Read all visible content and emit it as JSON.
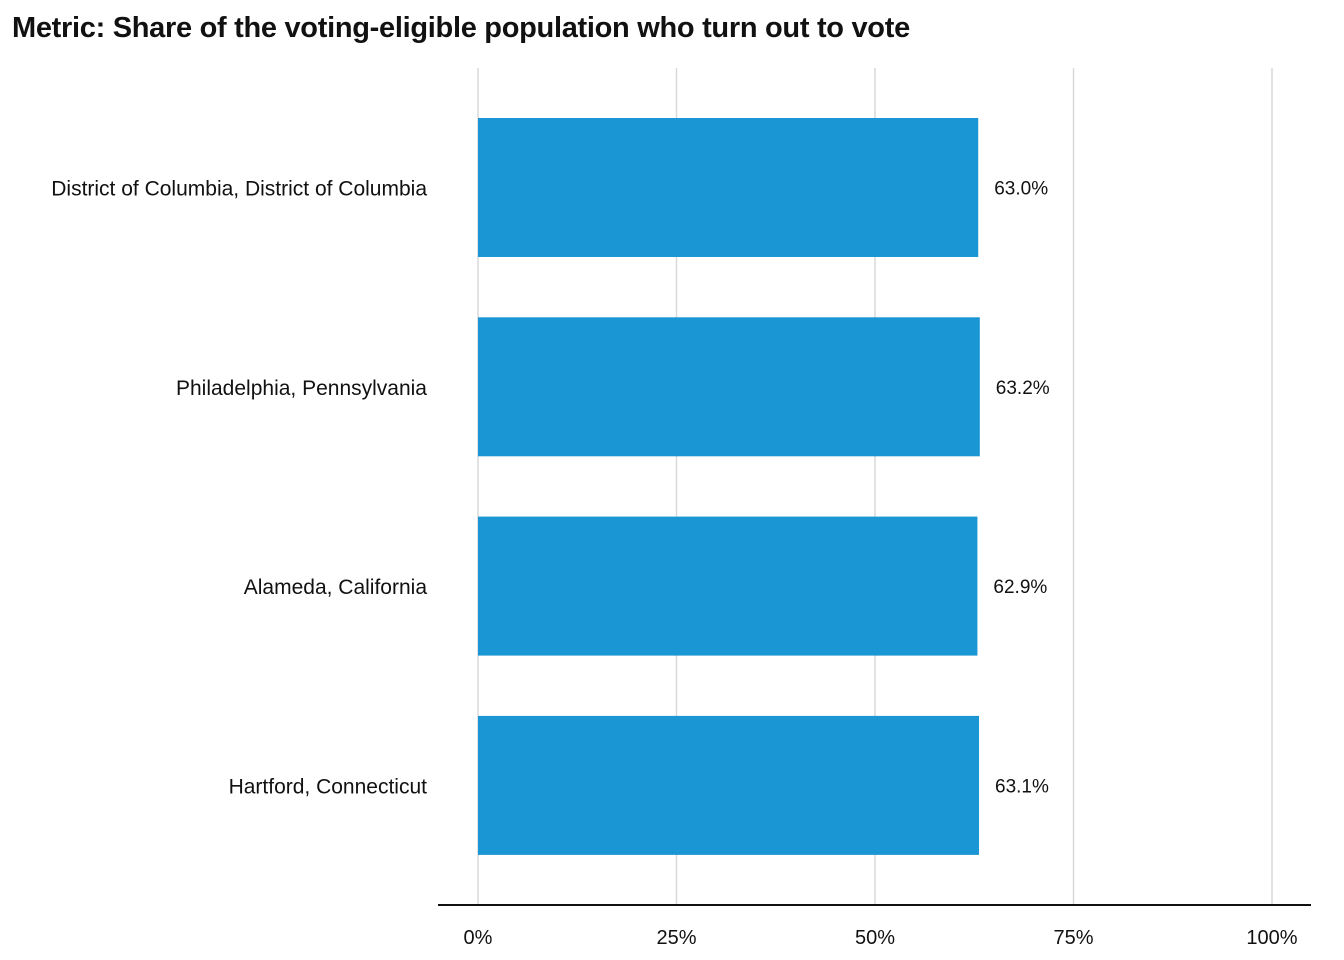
{
  "chart_data": {
    "type": "bar",
    "orientation": "horizontal",
    "title": "Metric: Share of the voting-eligible population who turn out to vote",
    "categories": [
      "District of Columbia, District of Columbia",
      "Philadelphia, Pennsylvania",
      "Alameda, California",
      "Hartford, Connecticut"
    ],
    "values": [
      63.0,
      63.2,
      62.9,
      63.1
    ],
    "value_labels": [
      "63.0%",
      "63.2%",
      "62.9%",
      "63.1%"
    ],
    "xlim": [
      0,
      100
    ],
    "x_ticks": [
      0,
      25,
      50,
      75,
      100
    ],
    "x_tick_labels": [
      "0%",
      "25%",
      "50%",
      "75%",
      "100%"
    ],
    "grid": true,
    "bar_color": "#1996d3",
    "grid_color": "#d9d9d9",
    "axis_color": "#111111"
  }
}
